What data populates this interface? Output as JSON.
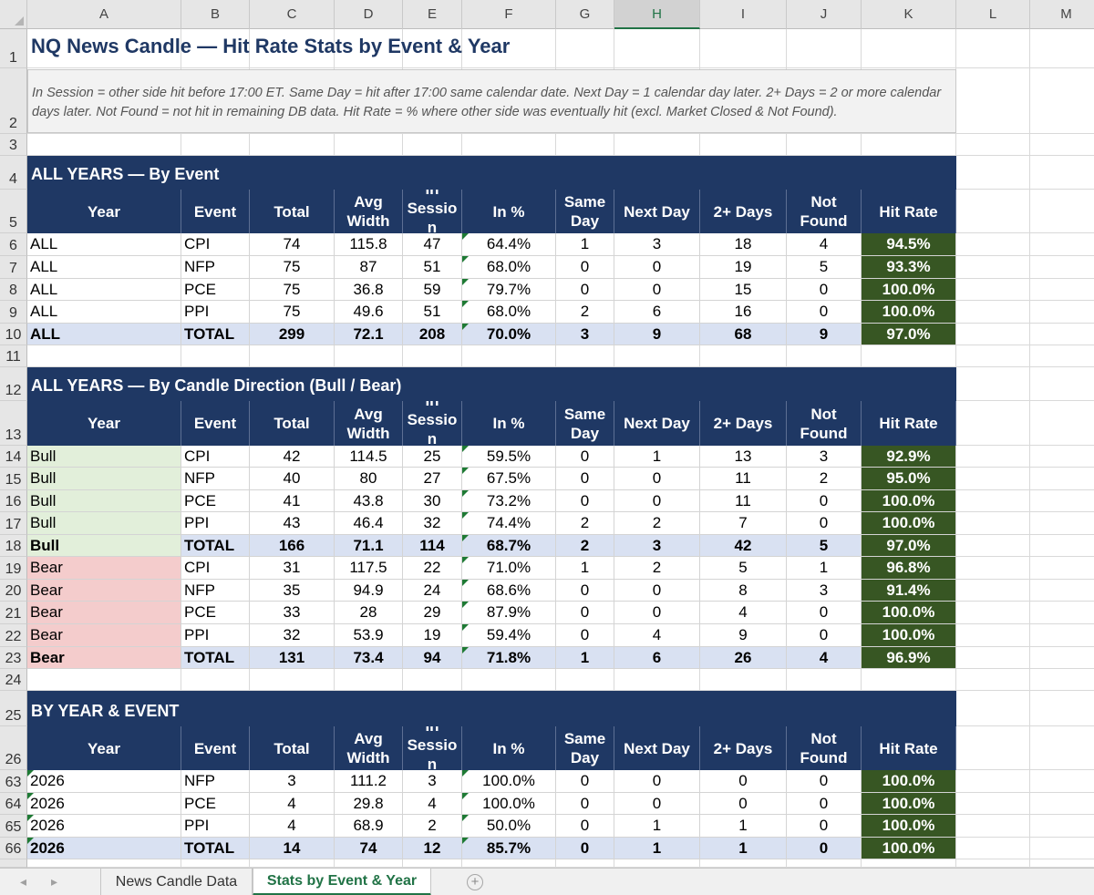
{
  "columns": [
    "A",
    "B",
    "C",
    "D",
    "E",
    "F",
    "G",
    "H",
    "I",
    "J",
    "K",
    "L",
    "M"
  ],
  "selected_column": "H",
  "title": "NQ News Candle — Hit Rate Stats by Event & Year",
  "note": "In Session = other side hit before 17:00 ET. Same Day = hit after 17:00 same calendar date. Next Day = 1 calendar day later. 2+ Days = 2 or more calendar days later. Not Found = not hit in remaining DB data. Hit Rate = % where other side was eventually hit (excl. Market Closed & Not Found).",
  "table_headers": [
    "Year",
    "Event",
    "Total",
    "Avg\nWidth",
    "In\nSessio\nn",
    "In %",
    "Same\nDay",
    "Next Day",
    "2+ Days",
    "Not\nFound",
    "Hit Rate"
  ],
  "sections": [
    {
      "banner": "ALL YEARS — By Event",
      "banner_row": "4",
      "header_row": "5",
      "rows": [
        {
          "rownum": "6",
          "style": "plain",
          "cells": [
            "ALL",
            "CPI",
            "74",
            "115.8",
            "47",
            "64.4%",
            "1",
            "3",
            "18",
            "4",
            "94.5%"
          ]
        },
        {
          "rownum": "7",
          "style": "plain",
          "cells": [
            "ALL",
            "NFP",
            "75",
            "87",
            "51",
            "68.0%",
            "0",
            "0",
            "19",
            "5",
            "93.3%"
          ]
        },
        {
          "rownum": "8",
          "style": "plain",
          "cells": [
            "ALL",
            "PCE",
            "75",
            "36.8",
            "59",
            "79.7%",
            "0",
            "0",
            "15",
            "0",
            "100.0%"
          ]
        },
        {
          "rownum": "9",
          "style": "plain",
          "cells": [
            "ALL",
            "PPI",
            "75",
            "49.6",
            "51",
            "68.0%",
            "2",
            "6",
            "16",
            "0",
            "100.0%"
          ]
        },
        {
          "rownum": "10",
          "style": "total",
          "cells": [
            "ALL",
            "TOTAL",
            "299",
            "72.1",
            "208",
            "70.0%",
            "3",
            "9",
            "68",
            "9",
            "97.0%"
          ]
        }
      ]
    },
    {
      "banner": "ALL YEARS — By Candle Direction (Bull / Bear)",
      "banner_row": "12",
      "header_row": "13",
      "rows": [
        {
          "rownum": "14",
          "style": "bull",
          "cells": [
            "Bull",
            "CPI",
            "42",
            "114.5",
            "25",
            "59.5%",
            "0",
            "1",
            "13",
            "3",
            "92.9%"
          ]
        },
        {
          "rownum": "15",
          "style": "bull",
          "cells": [
            "Bull",
            "NFP",
            "40",
            "80",
            "27",
            "67.5%",
            "0",
            "0",
            "11",
            "2",
            "95.0%"
          ]
        },
        {
          "rownum": "16",
          "style": "bull",
          "cells": [
            "Bull",
            "PCE",
            "41",
            "43.8",
            "30",
            "73.2%",
            "0",
            "0",
            "11",
            "0",
            "100.0%"
          ]
        },
        {
          "rownum": "17",
          "style": "bull",
          "cells": [
            "Bull",
            "PPI",
            "43",
            "46.4",
            "32",
            "74.4%",
            "2",
            "2",
            "7",
            "0",
            "100.0%"
          ]
        },
        {
          "rownum": "18",
          "style": "bulltotal",
          "cells": [
            "Bull",
            "TOTAL",
            "166",
            "71.1",
            "114",
            "68.7%",
            "2",
            "3",
            "42",
            "5",
            "97.0%"
          ]
        },
        {
          "rownum": "19",
          "style": "bear",
          "cells": [
            "Bear",
            "CPI",
            "31",
            "117.5",
            "22",
            "71.0%",
            "1",
            "2",
            "5",
            "1",
            "96.8%"
          ]
        },
        {
          "rownum": "20",
          "style": "bear",
          "cells": [
            "Bear",
            "NFP",
            "35",
            "94.9",
            "24",
            "68.6%",
            "0",
            "0",
            "8",
            "3",
            "91.4%"
          ]
        },
        {
          "rownum": "21",
          "style": "bear",
          "cells": [
            "Bear",
            "PCE",
            "33",
            "28",
            "29",
            "87.9%",
            "0",
            "0",
            "4",
            "0",
            "100.0%"
          ]
        },
        {
          "rownum": "22",
          "style": "bear",
          "cells": [
            "Bear",
            "PPI",
            "32",
            "53.9",
            "19",
            "59.4%",
            "0",
            "4",
            "9",
            "0",
            "100.0%"
          ]
        },
        {
          "rownum": "23",
          "style": "beartotal",
          "cells": [
            "Bear",
            "TOTAL",
            "131",
            "73.4",
            "94",
            "71.8%",
            "1",
            "6",
            "26",
            "4",
            "96.9%"
          ]
        }
      ]
    },
    {
      "banner": "BY YEAR & EVENT",
      "banner_row": "25",
      "header_row": "26",
      "rows": [
        {
          "rownum": "63",
          "style": "year",
          "cells": [
            "2026",
            "NFP",
            "3",
            "111.2",
            "3",
            "100.0%",
            "0",
            "0",
            "0",
            "0",
            "100.0%"
          ]
        },
        {
          "rownum": "64",
          "style": "year",
          "cells": [
            "2026",
            "PCE",
            "4",
            "29.8",
            "4",
            "100.0%",
            "0",
            "0",
            "0",
            "0",
            "100.0%"
          ]
        },
        {
          "rownum": "65",
          "style": "year",
          "cells": [
            "2026",
            "PPI",
            "4",
            "68.9",
            "2",
            "50.0%",
            "0",
            "1",
            "1",
            "0",
            "100.0%"
          ]
        },
        {
          "rownum": "66",
          "style": "yeartotal",
          "cells": [
            "2026",
            "TOTAL",
            "14",
            "74",
            "12",
            "85.7%",
            "0",
            "1",
            "1",
            "0",
            "100.0%"
          ]
        }
      ]
    }
  ],
  "blank_rows": [
    "1",
    "2",
    "3",
    "11",
    "24"
  ],
  "tabs": {
    "prev_icon": "◂",
    "next_icon": "▸",
    "sheets": [
      "News Candle Data",
      "Stats by Event & Year"
    ],
    "active": "Stats by Event & Year",
    "add_icon": "+"
  },
  "colors": {
    "header_navy": "#1f3864",
    "hit_rate_green": "#375623",
    "total_row_blue": "#d9e1f2",
    "bull_green": "#e2efda",
    "bear_red": "#f4cccc",
    "excel_green": "#217346"
  }
}
